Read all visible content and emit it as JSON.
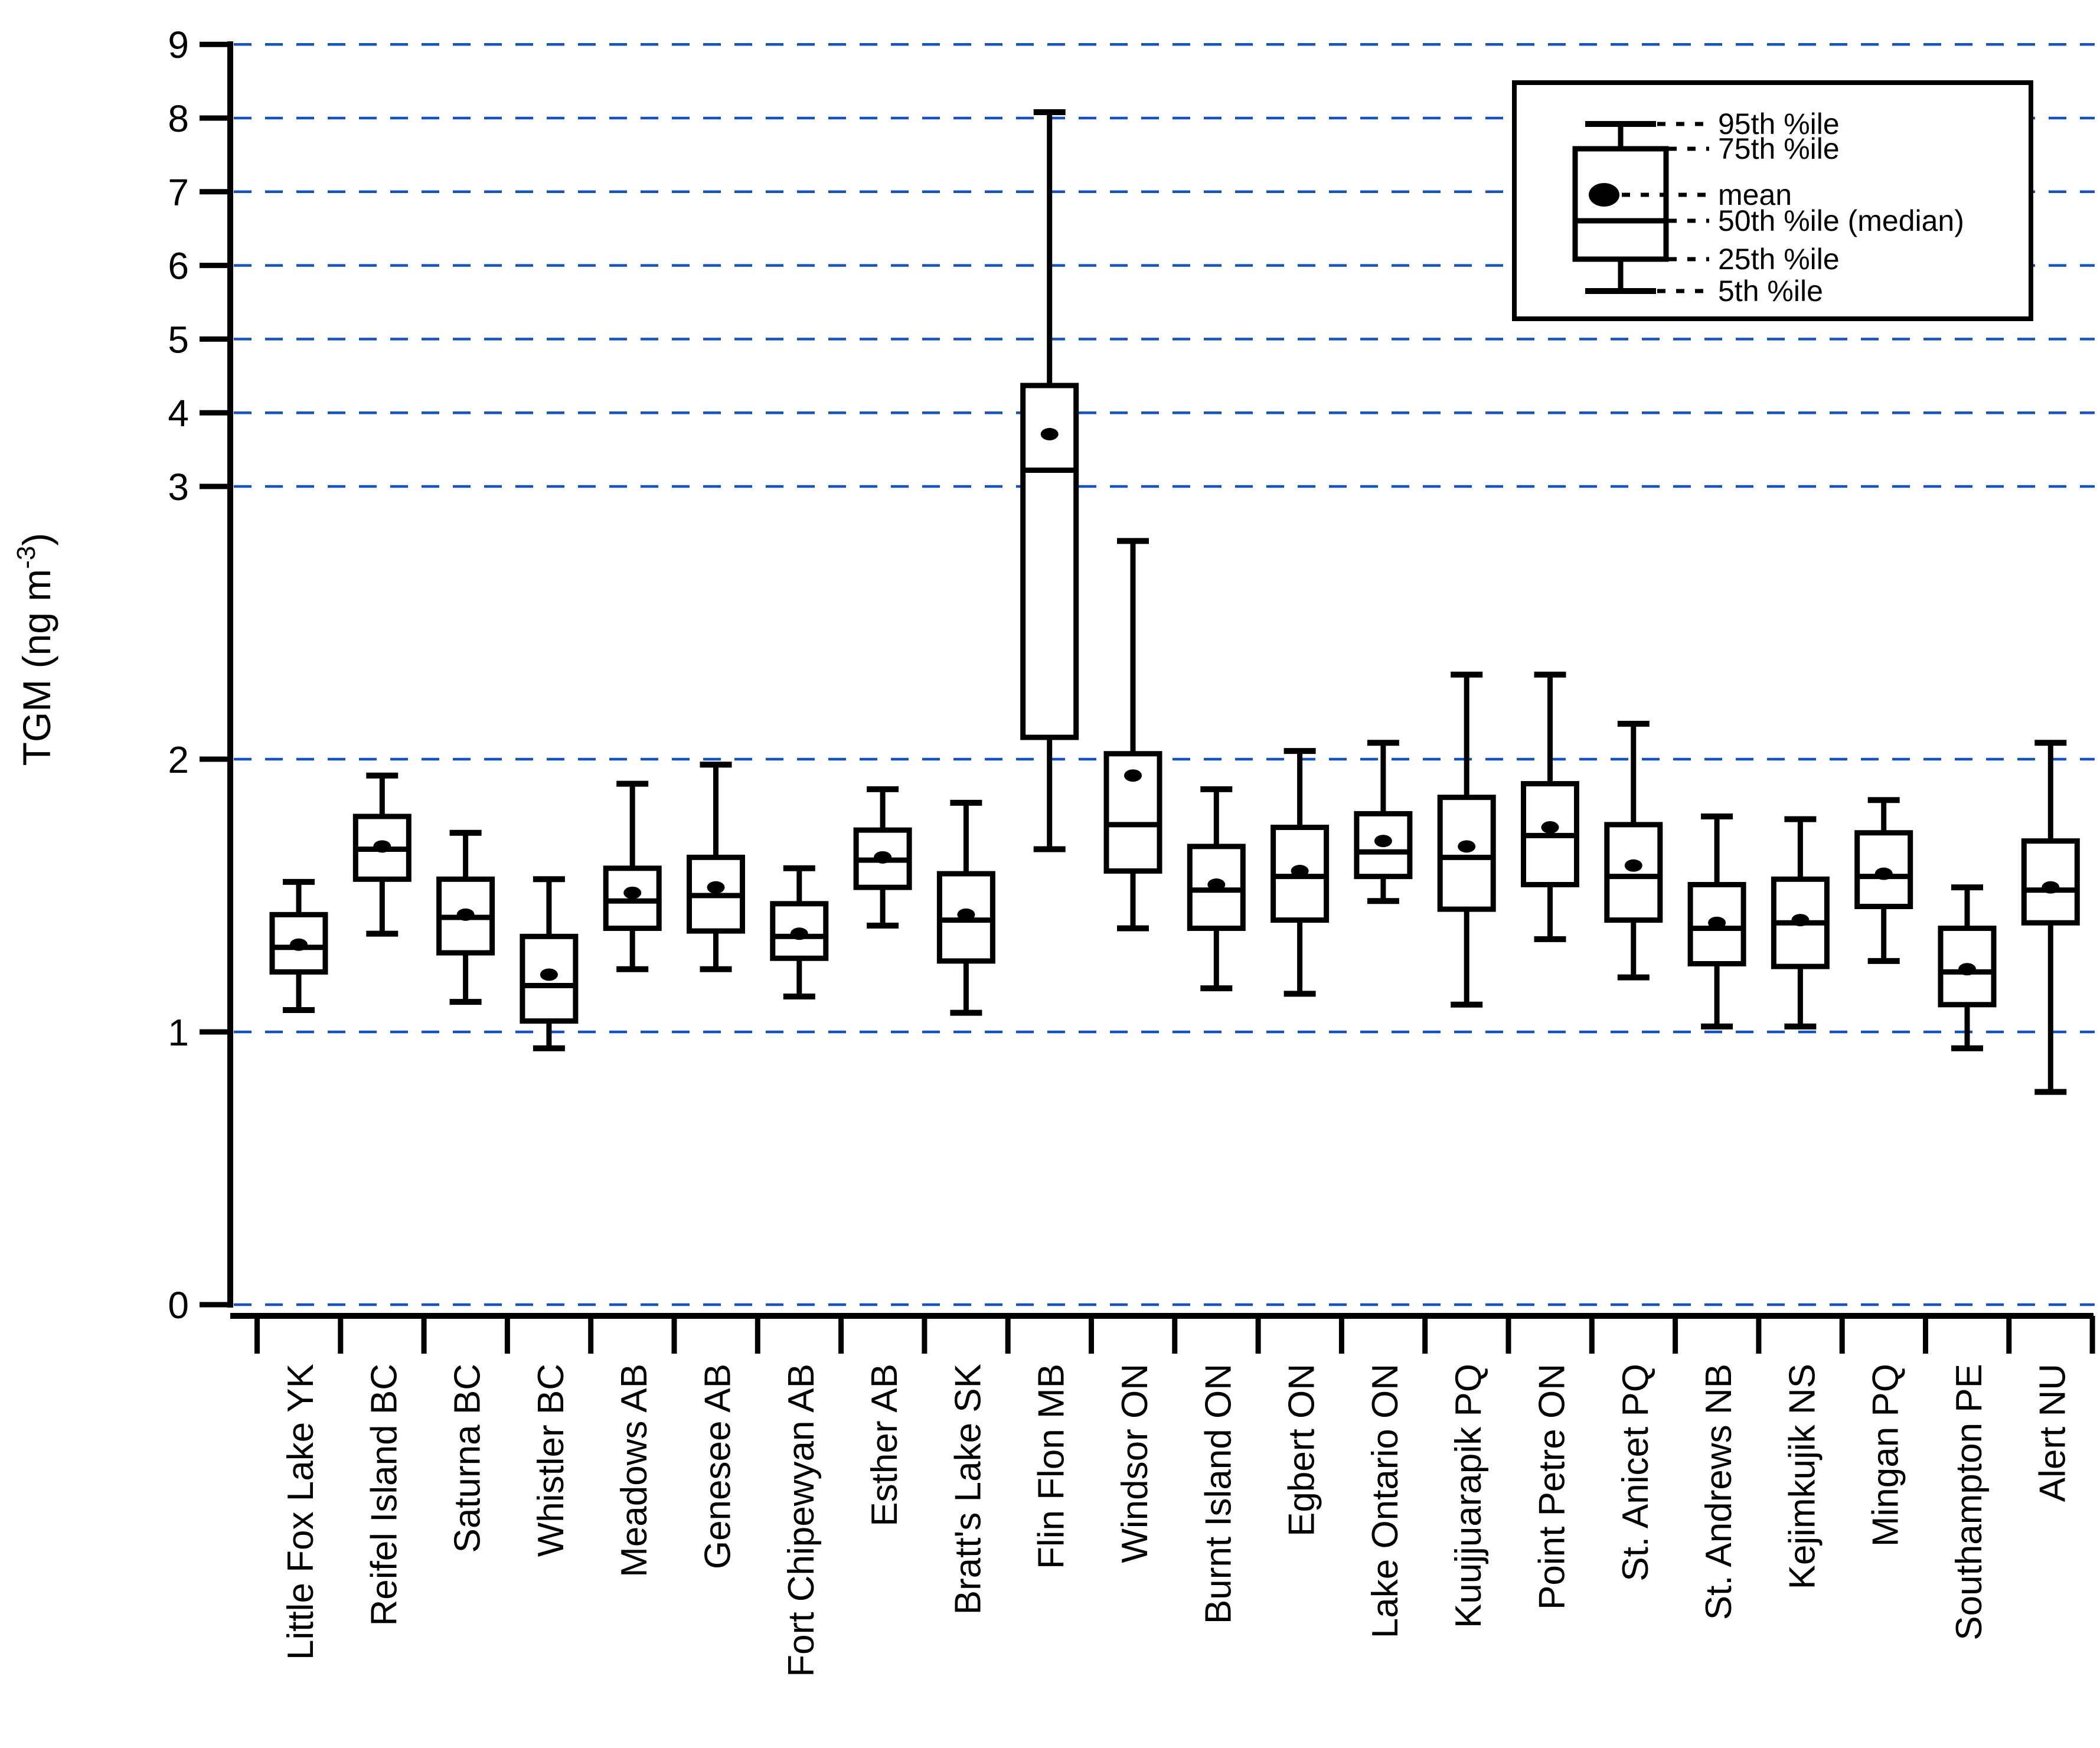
{
  "chart_data": {
    "type": "box",
    "title": "",
    "ylabel": {
      "prefix": "TGM (ng m",
      "superscript": "-3",
      "suffix": ")"
    },
    "y_ticks": [
      0,
      1,
      2,
      3,
      4,
      5,
      6,
      7,
      8,
      9
    ],
    "ylim": [
      0,
      9
    ],
    "y_scale_note": "broken linear axis: 0-3 expanded, 3-9 compressed",
    "grid": "horizontal dashed blue gridlines at every integer",
    "legend_position": "top-right",
    "legend_entries": [
      "95th %ile",
      "75th %ile",
      "mean",
      "50th %ile (median)",
      "25th %ile",
      "5th %ile"
    ],
    "stat_keys": [
      "p5",
      "p25",
      "median",
      "mean",
      "p75",
      "p95"
    ],
    "stations": [
      {
        "label": "Little Fox Lake YK",
        "p5": 1.08,
        "p25": 1.22,
        "median": 1.31,
        "mean": 1.32,
        "p75": 1.43,
        "p95": 1.55
      },
      {
        "label": "Reifel Island BC",
        "p5": 1.36,
        "p25": 1.56,
        "median": 1.67,
        "mean": 1.68,
        "p75": 1.79,
        "p95": 1.94
      },
      {
        "label": "Saturna BC",
        "p5": 1.11,
        "p25": 1.29,
        "median": 1.42,
        "mean": 1.43,
        "p75": 1.56,
        "p95": 1.73
      },
      {
        "label": "Whistler BC",
        "p5": 0.94,
        "p25": 1.04,
        "median": 1.17,
        "mean": 1.21,
        "p75": 1.35,
        "p95": 1.56
      },
      {
        "label": "Meadows AB",
        "p5": 1.23,
        "p25": 1.38,
        "median": 1.48,
        "mean": 1.51,
        "p75": 1.6,
        "p95": 1.91
      },
      {
        "label": "Genesee AB",
        "p5": 1.23,
        "p25": 1.37,
        "median": 1.5,
        "mean": 1.53,
        "p75": 1.64,
        "p95": 1.98
      },
      {
        "label": "Fort Chipewyan AB",
        "p5": 1.13,
        "p25": 1.27,
        "median": 1.35,
        "mean": 1.36,
        "p75": 1.47,
        "p95": 1.6
      },
      {
        "label": "Esther AB",
        "p5": 1.39,
        "p25": 1.53,
        "median": 1.63,
        "mean": 1.64,
        "p75": 1.74,
        "p95": 1.89
      },
      {
        "label": "Bratt's Lake SK",
        "p5": 1.07,
        "p25": 1.26,
        "median": 1.41,
        "mean": 1.43,
        "p75": 1.58,
        "p95": 1.84
      },
      {
        "label": "Flin Flon MB",
        "p5": 1.67,
        "p25": 2.08,
        "median": 3.22,
        "mean": 3.71,
        "p75": 4.37,
        "p95": 8.08
      },
      {
        "label": "Windsor ON",
        "p5": 1.38,
        "p25": 1.59,
        "median": 1.76,
        "mean": 1.94,
        "p75": 2.02,
        "p95": 2.8
      },
      {
        "label": "Burnt Island ON",
        "p5": 1.16,
        "p25": 1.38,
        "median": 1.52,
        "mean": 1.54,
        "p75": 1.68,
        "p95": 1.89
      },
      {
        "label": "Egbert ON",
        "p5": 1.14,
        "p25": 1.41,
        "median": 1.57,
        "mean": 1.59,
        "p75": 1.75,
        "p95": 2.03
      },
      {
        "label": "Lake Ontario ON",
        "p5": 1.48,
        "p25": 1.57,
        "median": 1.66,
        "mean": 1.7,
        "p75": 1.8,
        "p95": 2.06
      },
      {
        "label": "Kuujjuarapik PQ",
        "p5": 1.1,
        "p25": 1.45,
        "median": 1.64,
        "mean": 1.68,
        "p75": 1.86,
        "p95": 2.31
      },
      {
        "label": "Point Petre ON",
        "p5": 1.34,
        "p25": 1.54,
        "median": 1.72,
        "mean": 1.75,
        "p75": 1.91,
        "p95": 2.31
      },
      {
        "label": "St. Anicet PQ",
        "p5": 1.2,
        "p25": 1.41,
        "median": 1.57,
        "mean": 1.61,
        "p75": 1.76,
        "p95": 2.13
      },
      {
        "label": "St. Andrews NB",
        "p5": 1.02,
        "p25": 1.25,
        "median": 1.38,
        "mean": 1.4,
        "p75": 1.54,
        "p95": 1.79
      },
      {
        "label": "Kejimkujik NS",
        "p5": 1.02,
        "p25": 1.24,
        "median": 1.4,
        "mean": 1.41,
        "p75": 1.56,
        "p95": 1.78
      },
      {
        "label": "Mingan PQ",
        "p5": 1.26,
        "p25": 1.46,
        "median": 1.57,
        "mean": 1.58,
        "p75": 1.73,
        "p95": 1.85
      },
      {
        "label": "Southampton PE",
        "p5": 0.94,
        "p25": 1.1,
        "median": 1.22,
        "mean": 1.23,
        "p75": 1.38,
        "p95": 1.53
      },
      {
        "label": "Alert NU",
        "p5": 0.78,
        "p25": 1.4,
        "median": 1.52,
        "mean": 1.53,
        "p75": 1.7,
        "p95": 2.06
      }
    ],
    "colors": {
      "ink": "#000000",
      "gridline": "#1353c8",
      "background": "#ffffff"
    }
  }
}
